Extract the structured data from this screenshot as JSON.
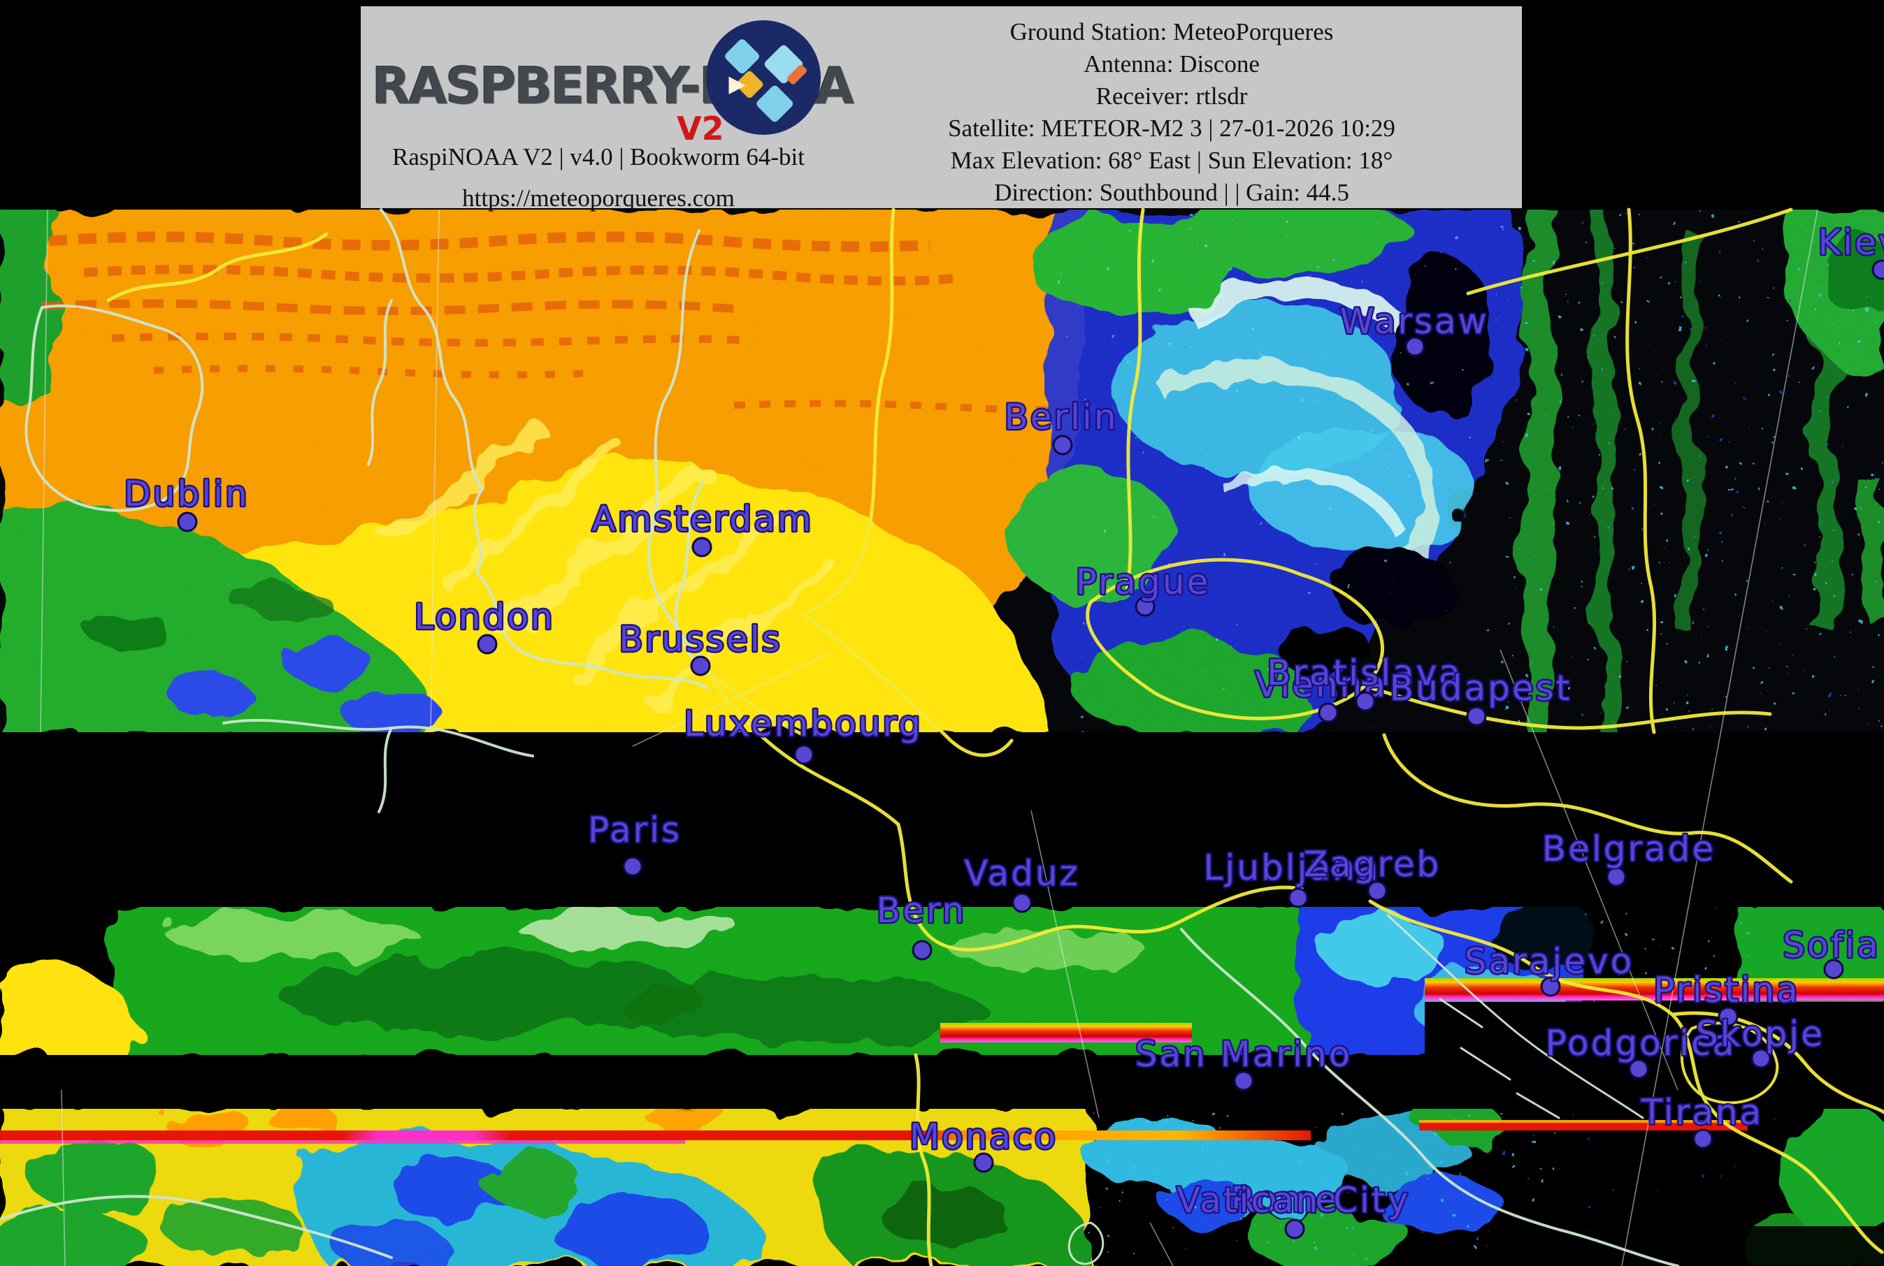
{
  "banner": {
    "logo_text": "RASPBERRY-NOAA",
    "logo_version": "V2",
    "left_line1": "RaspiNOAA V2 | v4.0 | Bookworm 64-bit",
    "left_line2": "https://meteoporqueres.com",
    "right_lines": [
      "Ground Station: MeteoPorqueres",
      "Antenna: Discone",
      "Receiver: rtlsdr",
      "Satellite: METEOR-M2 3 | 27-01-2026 10:29",
      "Max Elevation: 68° East | Sun Elevation: 18°",
      "Direction: Southbound | | Gain: 44.5"
    ]
  },
  "map": {
    "label_color": "#5646d2",
    "label_outline": "#1c1080",
    "dot_color": "#5646d2",
    "border_color": "#f2ea3a",
    "coast_color": "#cfe6cd",
    "palette": {
      "orange": "#f79b06",
      "red_orange": "#e2590a",
      "yellow": "#ffe411",
      "green": "#1fae2e",
      "dark_green": "#0b6e12",
      "blue": "#1b2fd6",
      "cyan": "#49c8ea",
      "pale_spiral": "#d9f7ef",
      "glitch_red": "#e81404",
      "glitch_magenta": "#ff2cc8",
      "banner_gray": "#c7c7c7"
    },
    "cities": [
      {
        "name": "Dublin",
        "dot": [
          268,
          747
        ],
        "label": [
          267,
          724
        ],
        "show_dot": true
      },
      {
        "name": "London",
        "dot": [
          697,
          922
        ],
        "label": [
          693,
          900
        ],
        "show_dot": true
      },
      {
        "name": "Amsterdam",
        "dot": [
          1004,
          783
        ],
        "label": [
          1005,
          760
        ],
        "show_dot": true
      },
      {
        "name": "Brussels",
        "dot": [
          1002,
          953
        ],
        "label": [
          1002,
          932
        ],
        "show_dot": true
      },
      {
        "name": "Luxembourg",
        "dot": [
          1150,
          1080
        ],
        "label": [
          1149,
          1053
        ],
        "show_dot": true
      },
      {
        "name": "Paris",
        "dot": [
          905,
          1240
        ],
        "label": [
          908,
          1205
        ],
        "show_dot": true
      },
      {
        "name": "Berlin",
        "dot": [
          1520,
          637
        ],
        "label": [
          1518,
          614
        ],
        "show_dot": true
      },
      {
        "name": "Prague",
        "dot": [
          1638,
          868
        ],
        "label": [
          1635,
          850
        ],
        "show_dot": true
      },
      {
        "name": "Warsaw",
        "dot": [
          2024,
          496
        ],
        "label": [
          2023,
          477
        ],
        "show_dot": true
      },
      {
        "name": "Kiev",
        "dot": [
          2692,
          386
        ],
        "label": [
          2660,
          364
        ],
        "show_dot": true
      },
      {
        "name": "Vienna",
        "dot": [
          1900,
          1020
        ],
        "label": [
          1890,
          997
        ],
        "show_dot": true
      },
      {
        "name": "Bratislava",
        "dot": [
          1953,
          1004
        ],
        "label": [
          1952,
          980
        ],
        "show_dot": true
      },
      {
        "name": "Budapest",
        "dot": [
          2112,
          1025
        ],
        "label": [
          2118,
          1002
        ],
        "show_dot": true
      },
      {
        "name": "Vaduz",
        "dot": [
          1462,
          1292
        ],
        "label": [
          1462,
          1267
        ],
        "show_dot": true
      },
      {
        "name": "Bern",
        "dot": [
          1319,
          1360
        ],
        "label": [
          1318,
          1320
        ],
        "show_dot": true
      },
      {
        "name": "Ljubljana",
        "dot": [
          1857,
          1285
        ],
        "label": [
          1848,
          1259
        ],
        "show_dot": true
      },
      {
        "name": "Zagreb",
        "dot": [
          1970,
          1275
        ],
        "label": [
          1963,
          1254
        ],
        "show_dot": true
      },
      {
        "name": "Belgrade",
        "dot": [
          2312,
          1255
        ],
        "label": [
          2330,
          1232
        ],
        "show_dot": true
      },
      {
        "name": "Sarajevo",
        "dot": [
          2218,
          1412
        ],
        "label": [
          2216,
          1393
        ],
        "show_dot": true
      },
      {
        "name": "Sofia",
        "dot": [
          2623,
          1387
        ],
        "label": [
          2620,
          1370
        ],
        "show_dot": true
      },
      {
        "name": "Pristina",
        "dot": [
          2472,
          1455
        ],
        "label": [
          2470,
          1434
        ],
        "show_dot": true
      },
      {
        "name": "Podgorica",
        "dot": [
          2344,
          1530
        ],
        "label": [
          2347,
          1510
        ],
        "show_dot": true
      },
      {
        "name": "Skopje",
        "dot": [
          2519,
          1515
        ],
        "label": [
          2518,
          1497
        ],
        "show_dot": true
      },
      {
        "name": "Tirana",
        "dot": [
          2436,
          1630
        ],
        "label": [
          2435,
          1609
        ],
        "show_dot": true
      },
      {
        "name": "San Marino",
        "dot": [
          1779,
          1547
        ],
        "label": [
          1779,
          1526
        ],
        "show_dot": true
      },
      {
        "name": "Monaco",
        "dot": [
          1407,
          1664
        ],
        "label": [
          1407,
          1644
        ],
        "show_dot": true
      },
      {
        "name": "Rome",
        "dot": [
          1852,
          1759
        ],
        "label": [
          1838,
          1734
        ],
        "show_dot": true
      },
      {
        "name": "Vatican City",
        "dot": [
          1852,
          1759
        ],
        "label": [
          1850,
          1735
        ],
        "show_dot": false
      }
    ]
  }
}
